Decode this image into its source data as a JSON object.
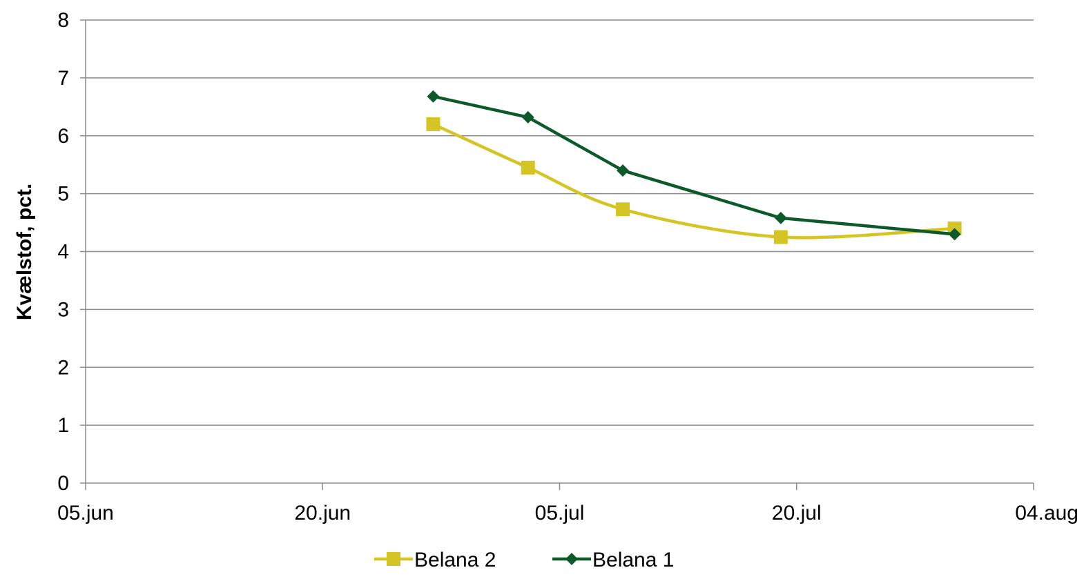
{
  "chart_data": {
    "type": "line",
    "title": "",
    "ylabel": "Kvælstof, pct.",
    "xlabel": "",
    "x_tick_labels": [
      {
        "date": "2012-06-05",
        "label": "05.jun"
      },
      {
        "date": "2012-06-20",
        "label": "20.jun"
      },
      {
        "date": "2012-07-05",
        "label": "05.jul"
      },
      {
        "date": "2012-07-20",
        "label": "20.jul"
      },
      {
        "date": "2012-08-04",
        "label": "04.aug"
      }
    ],
    "xlim": [
      "2012-06-05",
      "2012-08-04"
    ],
    "ylim": [
      0,
      8
    ],
    "y_ticks": [
      0,
      1,
      2,
      3,
      4,
      5,
      6,
      7,
      8
    ],
    "grid": true,
    "legend_position": "bottom",
    "series": [
      {
        "name": "Belana 2",
        "color": "#d4c424",
        "marker": "square",
        "smooth": true,
        "points": [
          {
            "x": "2012-06-27",
            "y": 6.2
          },
          {
            "x": "2012-07-03",
            "y": 5.45
          },
          {
            "x": "2012-07-09",
            "y": 4.73
          },
          {
            "x": "2012-07-19",
            "y": 4.25
          },
          {
            "x": "2012-07-30",
            "y": 4.4
          }
        ]
      },
      {
        "name": "Belana 1",
        "color": "#0c5a2a",
        "marker": "diamond",
        "smooth": false,
        "points": [
          {
            "x": "2012-06-27",
            "y": 6.68
          },
          {
            "x": "2012-07-03",
            "y": 6.32
          },
          {
            "x": "2012-07-09",
            "y": 5.4
          },
          {
            "x": "2012-07-19",
            "y": 4.58
          },
          {
            "x": "2012-07-30",
            "y": 4.3
          }
        ]
      }
    ]
  }
}
